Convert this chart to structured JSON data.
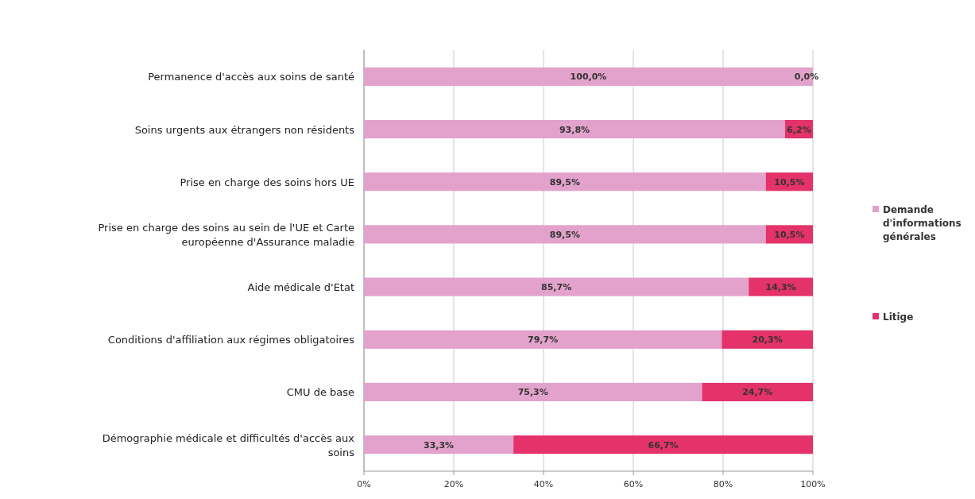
{
  "chart_data": {
    "type": "bar",
    "orientation": "horizontal",
    "stacked": true,
    "categories": [
      "Permanence d'accès aux soins de santé",
      "Soins urgents aux étrangers non résidents",
      "Prise en charge des soins hors UE",
      "Prise en charge des soins au sein de l'UE et Carte européenne d'Assurance maladie",
      "Aide médicale d'Etat",
      "Conditions d'affiliation aux régimes obligatoires",
      "CMU de base",
      "Démographie médicale et difficultés d'accès aux soins"
    ],
    "series": [
      {
        "name": "Demande d'informations générales",
        "color": "#e2a2cb",
        "values": [
          100.0,
          93.8,
          89.5,
          89.5,
          85.7,
          79.7,
          75.3,
          33.3
        ],
        "value_labels": [
          "100,0%",
          "93,8%",
          "89,5%",
          "89,5%",
          "85,7%",
          "79,7%",
          "75,3%",
          "33,3%"
        ]
      },
      {
        "name": "Litige",
        "color": "#e4326a",
        "values": [
          0.0,
          6.2,
          10.5,
          10.5,
          14.3,
          20.3,
          24.7,
          66.7
        ],
        "value_labels": [
          "0,0%",
          "6,2%",
          "10,5%",
          "10,5%",
          "14,3%",
          "20,3%",
          "24,7%",
          "66,7%"
        ]
      }
    ],
    "xlim": [
      0,
      100
    ],
    "xticks": [
      {
        "value": 0,
        "label": "0%"
      },
      {
        "value": 20,
        "label": "20%"
      },
      {
        "value": 40,
        "label": "40%"
      },
      {
        "value": 60,
        "label": "60%"
      },
      {
        "value": 80,
        "label": "80%"
      },
      {
        "value": 100,
        "label": "100%"
      }
    ],
    "grid": "x",
    "legend": "right"
  }
}
